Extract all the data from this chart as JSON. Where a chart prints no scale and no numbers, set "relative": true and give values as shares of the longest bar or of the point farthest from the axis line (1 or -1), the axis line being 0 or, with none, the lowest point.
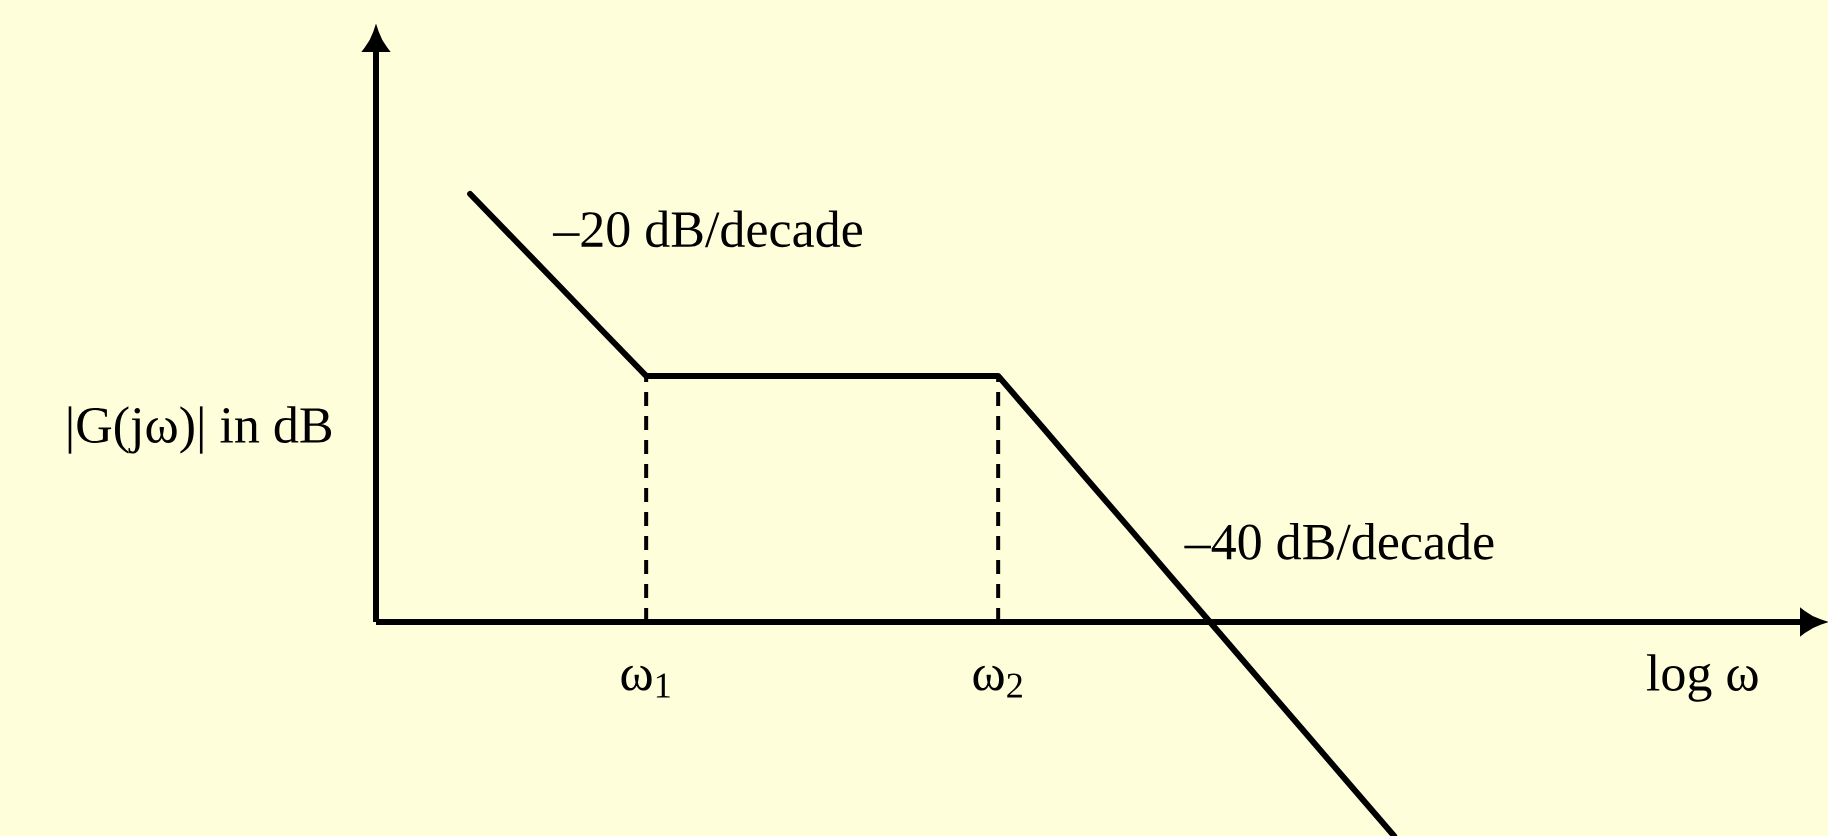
{
  "chart_data": {
    "type": "line",
    "relative": true,
    "xlabel": "log ω",
    "ylabel": "|G(jω)| in dB",
    "tick_labels": "x",
    "categories": [
      null,
      null,
      null,
      null,
      null,
      null,
      "ω$_{1}$",
      null,
      null,
      null,
      null,
      null,
      null,
      null,
      "ω$_{2}$",
      null,
      null,
      null,
      null,
      null,
      null,
      null,
      null,
      null,
      null,
      null,
      null,
      null,
      null,
      null,
      null,
      null,
      null
    ],
    "series": [
      {
        "color": "#000000",
        "values": [
          null,
          null,
          1,
          0.894,
          0.788,
          0.681,
          0.575,
          0.575,
          0.575,
          0.575,
          0.575,
          0.575,
          0.575,
          0.575,
          0.575,
          0.456,
          0.336,
          0.217,
          0.097,
          -0.022,
          -0.142,
          -0.261,
          -0.381,
          -0.5,
          null,
          null,
          null,
          null,
          null,
          null,
          null,
          null,
          null
        ]
      }
    ],
    "ref_lines": [
      {
        "axis": "x",
        "value": "ω$_{1}$",
        "line_style": "dashed",
        "color": "#000000"
      },
      {
        "axis": "x",
        "value": "ω$_{2}$",
        "line_style": "dashed",
        "color": "#000000"
      }
    ],
    "annotations": [
      "–20 dB/decade",
      "–40 dB/decade"
    ]
  }
}
